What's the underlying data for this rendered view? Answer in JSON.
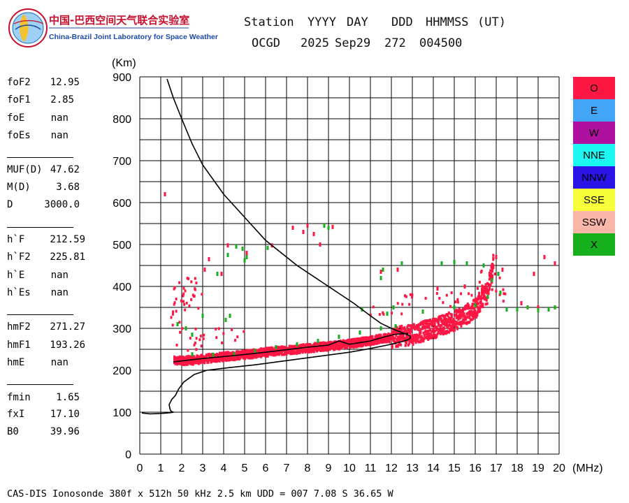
{
  "header": {
    "logo_cn": "中国-巴西空间天气联合实验室",
    "logo_en": "China-Brazil Joint Laboratory for Space Weather",
    "col_labels": [
      "Station",
      "YYYY",
      "DAY",
      "DDD",
      "HHMMSS",
      "(UT)"
    ],
    "col_values": [
      "OCGD",
      "2025",
      "Sep29",
      "272",
      "004500"
    ]
  },
  "params": {
    "group1": [
      {
        "label": "foF2",
        "value": "12.95"
      },
      {
        "label": "foF1",
        "value": "2.85"
      },
      {
        "label": "foE",
        "value": "nan"
      },
      {
        "label": "foEs",
        "value": "nan"
      }
    ],
    "group2": [
      {
        "label": "MUF(D)",
        "value": "47.62"
      },
      {
        "label": "M(D)",
        "value": "3.68"
      },
      {
        "label": "D",
        "value": "3000.0"
      }
    ],
    "group3": [
      {
        "label": "h`F",
        "value": "212.59"
      },
      {
        "label": "h`F2",
        "value": "225.81"
      },
      {
        "label": "h`E",
        "value": "nan"
      },
      {
        "label": "h`Es",
        "value": "nan"
      }
    ],
    "group4": [
      {
        "label": "hmF2",
        "value": "271.27"
      },
      {
        "label": "hmF1",
        "value": "193.26"
      },
      {
        "label": "hmE",
        "value": "nan"
      }
    ],
    "group5": [
      {
        "label": "fmin",
        "value": "1.65"
      },
      {
        "label": "fxI",
        "value": "17.10"
      },
      {
        "label": "B0",
        "value": "39.96"
      }
    ]
  },
  "legend": [
    {
      "label": "O",
      "color": "#ff1744"
    },
    {
      "label": "E",
      "color": "#42a5f5"
    },
    {
      "label": "W",
      "color": "#b0109f"
    },
    {
      "label": "NNE",
      "color": "#1cf7f2"
    },
    {
      "label": "NNW",
      "color": "#2a14e8"
    },
    {
      "label": "SSE",
      "color": "#f6ff3a"
    },
    {
      "label": "SSW",
      "color": "#f9b6a9"
    },
    {
      "label": "X",
      "color": "#16b01c"
    }
  ],
  "footer": "CAS-DIS Ionosonde 380f x 512h 50 kHz 2.5 km UDD = 007 7.08 S 36.65 W",
  "chart_data": {
    "type": "scatter",
    "title": "",
    "xlabel": "(MHz)",
    "ylabel": "(Km)",
    "xlim": [
      0,
      20
    ],
    "ylim": [
      0,
      900
    ],
    "x_ticks": [
      0,
      1,
      2,
      3,
      4,
      5,
      6,
      7,
      8,
      9,
      10,
      11,
      12,
      13,
      14,
      15,
      16,
      17,
      18,
      19,
      20
    ],
    "y_ticks": [
      0,
      100,
      200,
      300,
      400,
      500,
      600,
      700,
      800,
      900
    ],
    "grid": true,
    "series": [
      {
        "name": "O",
        "color": "#ff1744",
        "kind": "trace_band",
        "trace": [
          [
            1.65,
            222
          ],
          [
            2.5,
            224
          ],
          [
            4,
            232
          ],
          [
            5.5,
            240
          ],
          [
            7,
            248
          ],
          [
            8.5,
            255
          ],
          [
            10,
            263
          ],
          [
            11,
            271
          ],
          [
            12,
            278
          ],
          [
            13,
            285
          ],
          [
            14,
            300
          ],
          [
            15,
            318
          ],
          [
            16,
            345
          ],
          [
            16.6,
            395
          ],
          [
            16.9,
            460
          ]
        ],
        "band_halfwidth_km": 10,
        "extra_clusters": [
          [
            1.5,
            3.0,
            245,
            420
          ],
          [
            2.5,
            5.0,
            265,
            300
          ],
          [
            11,
            12.8,
            330,
            360
          ],
          [
            12.6,
            16,
            350,
            385
          ],
          [
            16,
            17.5,
            355,
            440
          ]
        ],
        "sporadic_points": [
          [
            1.2,
            620
          ],
          [
            4.2,
            498
          ],
          [
            5.1,
            480
          ],
          [
            6.3,
            498
          ],
          [
            7.3,
            540
          ],
          [
            7.8,
            530
          ],
          [
            8.0,
            545
          ],
          [
            8.3,
            525
          ],
          [
            8.6,
            500
          ],
          [
            9.2,
            542
          ],
          [
            3.1,
            440
          ],
          [
            3.3,
            465
          ],
          [
            3.9,
            430
          ],
          [
            18.8,
            430
          ],
          [
            19.3,
            470
          ],
          [
            19.8,
            455
          ],
          [
            17.0,
            470
          ],
          [
            17.3,
            440
          ],
          [
            14.2,
            395
          ],
          [
            15.5,
            400
          ],
          [
            19.0,
            350
          ],
          [
            18.2,
            360
          ],
          [
            11.5,
            435
          ],
          [
            12.3,
            440
          ]
        ]
      },
      {
        "name": "X",
        "color": "#16b01c",
        "kind": "points",
        "points": [
          [
            2.5,
            238
          ],
          [
            3.5,
            237
          ],
          [
            4.5,
            238
          ],
          [
            5.5,
            246
          ],
          [
            6.5,
            255
          ],
          [
            7.5,
            262
          ],
          [
            8.5,
            270
          ],
          [
            9.5,
            280
          ],
          [
            10.5,
            290
          ],
          [
            11.5,
            300
          ],
          [
            12.2,
            305
          ],
          [
            1.8,
            310
          ],
          [
            2.2,
            300
          ],
          [
            2.5,
            285
          ],
          [
            3.0,
            330
          ],
          [
            4.1,
            320
          ],
          [
            4.3,
            330
          ],
          [
            4.6,
            495
          ],
          [
            4.2,
            475
          ],
          [
            5.0,
            462
          ],
          [
            10.6,
            345
          ],
          [
            11.8,
            335
          ],
          [
            12.1,
            350
          ],
          [
            13.5,
            340
          ],
          [
            15.0,
            350
          ],
          [
            16.0,
            355
          ],
          [
            16.6,
            375
          ],
          [
            17.2,
            385
          ],
          [
            17.5,
            345
          ],
          [
            18.0,
            345
          ],
          [
            18.5,
            350
          ],
          [
            19.0,
            343
          ],
          [
            19.5,
            345
          ],
          [
            19.8,
            350
          ],
          [
            16.8,
            415
          ],
          [
            17.1,
            430
          ],
          [
            14.4,
            455
          ],
          [
            15.0,
            458
          ],
          [
            15.6,
            455
          ],
          [
            16.4,
            450
          ],
          [
            11.5,
            420
          ],
          [
            11.6,
            440
          ],
          [
            12.5,
            455
          ],
          [
            9.0,
            540
          ],
          [
            8.8,
            545
          ],
          [
            4.9,
            490
          ],
          [
            5.1,
            470
          ],
          [
            3.7,
            430
          ],
          [
            6.1,
            492
          ]
        ]
      },
      {
        "name": "virtual_height_trace",
        "color": "#000000",
        "kind": "line",
        "points": [
          [
            0.1,
            98
          ],
          [
            0.5,
            96
          ],
          [
            1.0,
            97
          ],
          [
            1.3,
            98
          ],
          [
            1.5,
            99
          ],
          [
            1.6,
            100
          ],
          [
            1.5,
            102
          ],
          [
            1.45,
            106
          ],
          [
            1.4,
            118
          ],
          [
            1.52,
            130
          ],
          [
            1.7,
            140
          ],
          [
            1.85,
            155
          ],
          [
            2.1,
            172
          ],
          [
            2.6,
            190
          ],
          [
            3.2,
            200
          ],
          [
            4.2,
            206
          ],
          [
            5.5,
            213
          ],
          [
            7,
            223
          ],
          [
            8.5,
            233
          ],
          [
            10,
            243
          ],
          [
            11,
            252
          ],
          [
            11.8,
            260
          ],
          [
            12.4,
            267
          ],
          [
            12.75,
            272
          ],
          [
            12.9,
            276
          ],
          [
            12.9,
            282
          ],
          [
            12.5,
            290
          ],
          [
            12,
            300
          ],
          [
            11.5,
            312
          ],
          [
            11,
            330
          ],
          [
            10.2,
            360
          ],
          [
            9,
            400
          ],
          [
            7.5,
            450
          ],
          [
            6,
            510
          ],
          [
            5,
            565
          ],
          [
            4,
            620
          ],
          [
            3,
            690
          ],
          [
            2.5,
            740
          ],
          [
            2,
            800
          ],
          [
            1.6,
            850
          ],
          [
            1.3,
            895
          ]
        ]
      },
      {
        "name": "O_trace_fine",
        "color": "#000000",
        "kind": "line",
        "points": [
          [
            1.6,
            220
          ],
          [
            3,
            228
          ],
          [
            4.5,
            235
          ],
          [
            6,
            243
          ],
          [
            7,
            249
          ],
          [
            8,
            255
          ],
          [
            9,
            260
          ],
          [
            9.5,
            270
          ],
          [
            10,
            262
          ],
          [
            11,
            270
          ],
          [
            11.7,
            280
          ],
          [
            12.2,
            286
          ],
          [
            12.8,
            288
          ]
        ]
      }
    ]
  }
}
